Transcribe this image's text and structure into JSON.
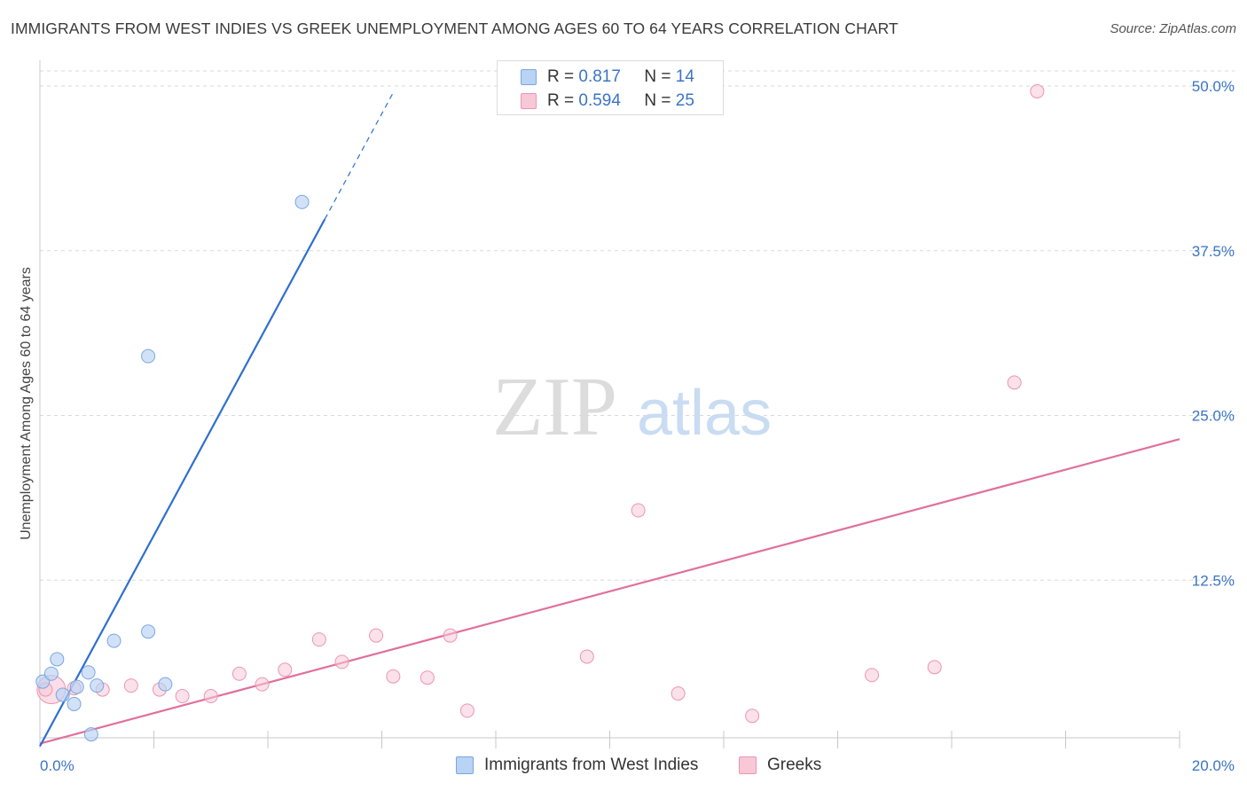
{
  "title": "IMMIGRANTS FROM WEST INDIES VS GREEK UNEMPLOYMENT AMONG AGES 60 TO 64 YEARS CORRELATION CHART",
  "source": "Source: ZipAtlas.com",
  "watermark": {
    "zip": "ZIP",
    "atlas": "atlas"
  },
  "legend": {
    "series1": {
      "r_label": "R =",
      "r_value": "0.817",
      "n_label": "N =",
      "n_value": "14"
    },
    "series2": {
      "r_label": "R =",
      "r_value": "0.594",
      "n_label": "N =",
      "n_value": "25"
    }
  },
  "bottom_legend": {
    "series1": "Immigrants from West Indies",
    "series2": "Greeks"
  },
  "colors": {
    "blue_fill": "#b9d3f5",
    "blue_stroke": "#7aa6e0",
    "blue_line": "#2e6fcf",
    "pink_fill": "#f8c8d7",
    "pink_stroke": "#ea96b1",
    "pink_line": "#e0709a",
    "axis_text": "#3a74c5",
    "grid": "#d9d9d9"
  },
  "chart_data": {
    "type": "scatter",
    "title": "IMMIGRANTS FROM WEST INDIES VS GREEK UNEMPLOYMENT AMONG AGES 60 TO 64 YEARS CORRELATION CHART",
    "xlabel": "",
    "ylabel": "Unemployment Among Ages 60 to 64 years",
    "xlim": [
      0,
      20
    ],
    "ylim": [
      0,
      52
    ],
    "x_tick_labels": [
      "0.0%",
      "20.0%"
    ],
    "y_ticks": [
      12.5,
      25.0,
      37.5,
      50.0
    ],
    "y_tick_labels": [
      "12.5%",
      "25.0%",
      "37.5%",
      "50.0%"
    ],
    "series": [
      {
        "name": "Immigrants from West Indies",
        "r": 0.817,
        "n": 14,
        "points": [
          [
            0.05,
            4.8
          ],
          [
            0.2,
            5.4
          ],
          [
            0.3,
            6.5
          ],
          [
            0.4,
            3.8
          ],
          [
            0.6,
            3.1
          ],
          [
            0.65,
            4.4
          ],
          [
            0.85,
            5.5
          ],
          [
            0.9,
            0.8
          ],
          [
            1.0,
            4.5
          ],
          [
            1.3,
            7.9
          ],
          [
            1.9,
            29.5
          ],
          [
            1.9,
            8.6
          ],
          [
            2.2,
            4.6
          ],
          [
            4.6,
            41.2
          ]
        ],
        "trend": {
          "x0": 0.0,
          "y0": -0.1,
          "x1": 5.0,
          "y1": 39.9,
          "dash_x_end": 6.2,
          "dash_y_end": 49.5
        }
      },
      {
        "name": "Greeks",
        "r": 0.594,
        "n": 25,
        "points": [
          [
            0.1,
            4.2
          ],
          [
            0.6,
            4.3
          ],
          [
            1.1,
            4.2
          ],
          [
            1.6,
            4.5
          ],
          [
            2.1,
            4.2
          ],
          [
            2.5,
            3.7
          ],
          [
            3.0,
            3.7
          ],
          [
            3.5,
            5.4
          ],
          [
            3.9,
            4.6
          ],
          [
            4.3,
            5.7
          ],
          [
            4.9,
            8.0
          ],
          [
            5.3,
            6.3
          ],
          [
            5.9,
            8.3
          ],
          [
            6.2,
            5.2
          ],
          [
            6.8,
            5.1
          ],
          [
            7.2,
            8.3
          ],
          [
            7.5,
            2.6
          ],
          [
            9.6,
            6.7
          ],
          [
            10.5,
            17.8
          ],
          [
            11.2,
            3.9
          ],
          [
            12.5,
            2.2
          ],
          [
            14.6,
            5.3
          ],
          [
            15.7,
            5.9
          ],
          [
            17.1,
            27.5
          ],
          [
            17.5,
            49.6
          ]
        ],
        "trend": {
          "x0": 0.0,
          "y0": 0.1,
          "x1": 20.0,
          "y1": 23.2
        }
      }
    ]
  }
}
